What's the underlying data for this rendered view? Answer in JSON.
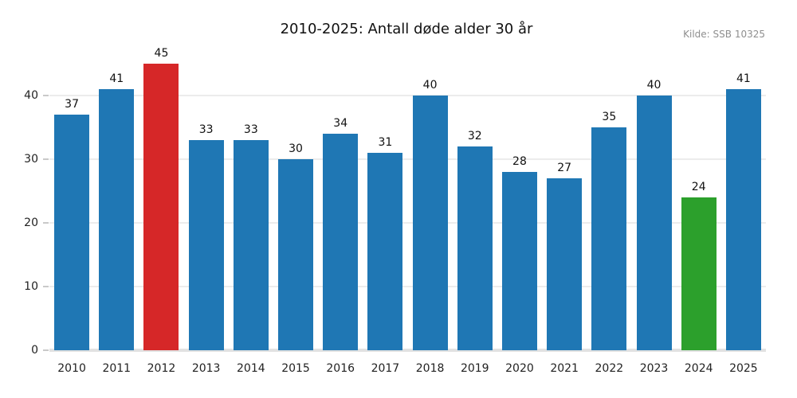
{
  "header": {
    "title": "2010-2025: Antall døde alder 30 år",
    "source": "Kilde: SSB 10325"
  },
  "chart_data": {
    "type": "bar",
    "title": "2010-2025: Antall døde alder 30 år",
    "annotation": "Kilde: SSB 10325",
    "categories": [
      "2010",
      "2011",
      "2012",
      "2013",
      "2014",
      "2015",
      "2016",
      "2017",
      "2018",
      "2019",
      "2020",
      "2021",
      "2022",
      "2023",
      "2024",
      "2025"
    ],
    "values": [
      37,
      41,
      45,
      33,
      33,
      30,
      34,
      31,
      40,
      32,
      28,
      27,
      35,
      40,
      24,
      41
    ],
    "bar_colors": [
      "#1f77b4",
      "#1f77b4",
      "#d62728",
      "#1f77b4",
      "#1f77b4",
      "#1f77b4",
      "#1f77b4",
      "#1f77b4",
      "#1f77b4",
      "#1f77b4",
      "#1f77b4",
      "#1f77b4",
      "#1f77b4",
      "#1f77b4",
      "#2ca02c",
      "#1f77b4"
    ],
    "colors": {
      "default_bar": "#1f77b4",
      "max_highlight": "#d62728",
      "min_highlight": "#2ca02c",
      "gridline": "#ececec",
      "baseline": "#e2e2e2",
      "source_text": "#8e8e8e"
    },
    "xlabel": "",
    "ylabel": "",
    "ylim": [
      0,
      47.5
    ],
    "yticks": [
      0,
      10,
      20,
      30,
      40
    ],
    "grid": "horizontal",
    "legend": "none",
    "value_labels": true,
    "background": "#ffffff"
  }
}
